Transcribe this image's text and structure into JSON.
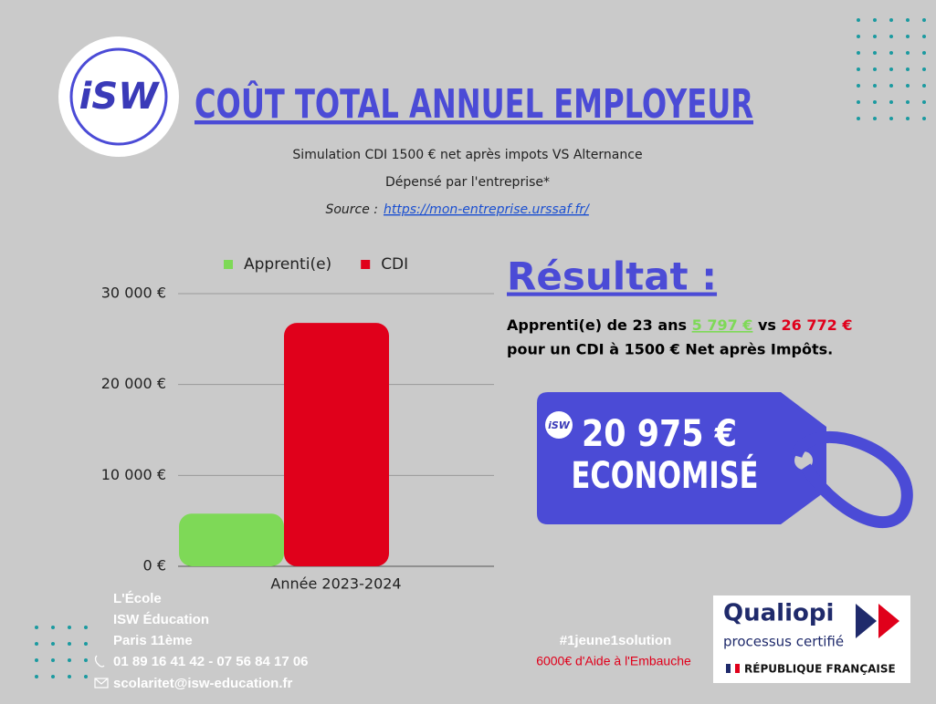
{
  "logo": "iSW",
  "header": {
    "title": "COÛT TOTAL ANNUEL EMPLOYEUR",
    "subtitle": "Simulation CDI 1500 € net après impots VS Alternance",
    "note": "Dépensé par l'entreprise*",
    "source_label": "Source :",
    "source_url": "https://mon-entreprise.urssaf.fr/"
  },
  "chart_data": {
    "type": "bar",
    "categories": [
      "Année 2023-2024"
    ],
    "series": [
      {
        "name": "Apprenti(e)",
        "color": "#7ed957",
        "values": [
          5797
        ]
      },
      {
        "name": "CDI",
        "color": "#e0001b",
        "values": [
          26772
        ]
      }
    ],
    "ylim": [
      0,
      30000
    ],
    "yticks": [
      {
        "value": 0,
        "label": "0 €"
      },
      {
        "value": 10000,
        "label": "10 000 €"
      },
      {
        "value": 20000,
        "label": "20 000 €"
      },
      {
        "value": 30000,
        "label": "30 000 €"
      }
    ],
    "grid": true,
    "legend": "top"
  },
  "result": {
    "title": "Résultat :",
    "line1_prefix": "Apprenti(e) de 23 ans",
    "apprentice_cost": "5 797 €",
    "vs": "vs",
    "cdi_cost": "26 772 €",
    "line2": "pour un CDI à 1500 € Net après Impôts.",
    "savings": "20 975 €",
    "savings_label": "ECONOMISÉ"
  },
  "footer": {
    "school": "L'École",
    "name": "ISW Éducation",
    "city": "Paris 11ème",
    "phone": "01  89 16 41 42 - 07 56 84 17 06",
    "email": "scolaritet@isw-education.fr",
    "hashtag": "#1jeune1solution",
    "aid": "6000€ d'Aide à l'Embauche"
  },
  "certification": {
    "name": "Qualiopi",
    "tagline": "processus certifié",
    "country": "RÉPUBLIQUE FRANÇAISE"
  }
}
